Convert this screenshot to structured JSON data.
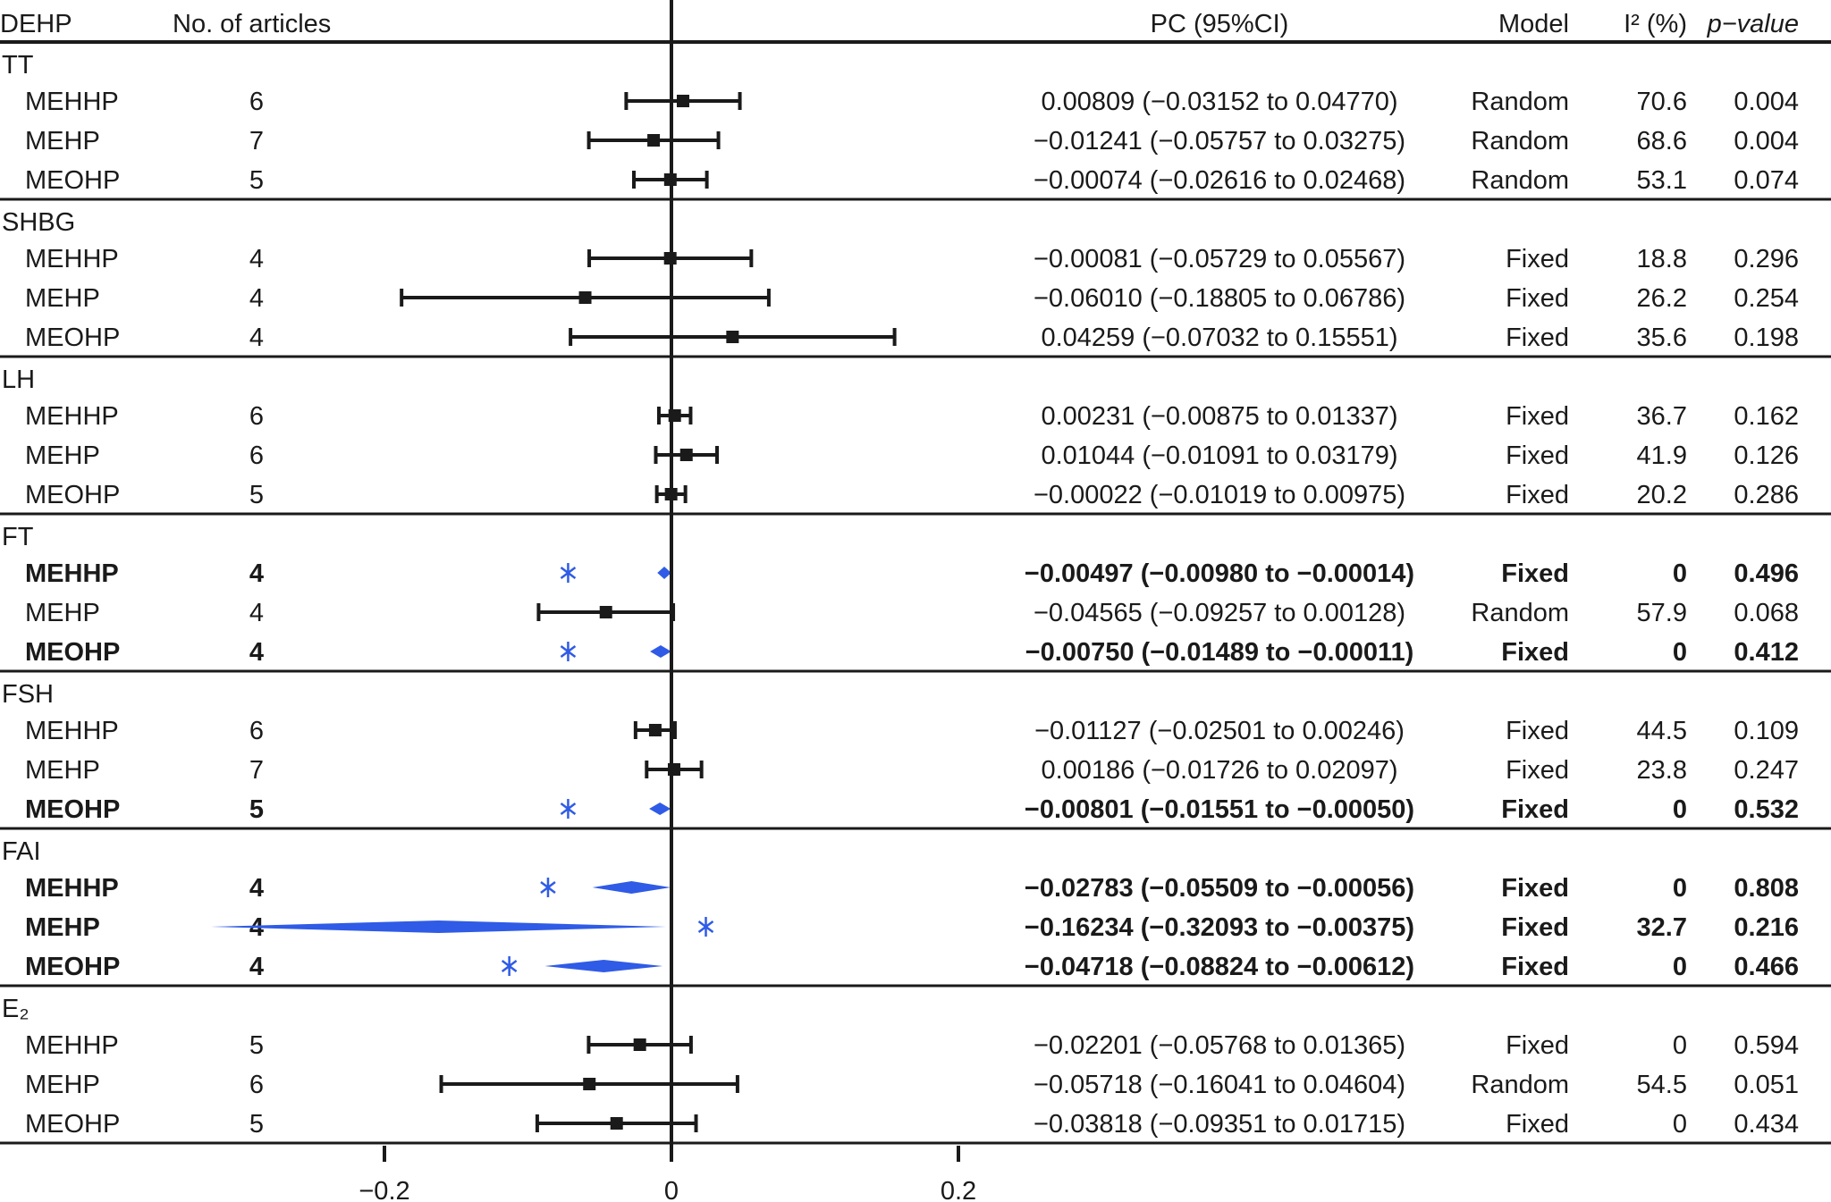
{
  "chart_data": {
    "type": "forest",
    "headers": {
      "col1": "DEHP",
      "col2": "No. of articles",
      "ci": "PC (95%CI)",
      "model": "Model",
      "i2": "I² (%)",
      "p": "p−value"
    },
    "x_axis": {
      "ticks": [
        -0.2,
        0,
        0.2
      ],
      "tick_labels": [
        "−0.2",
        "0",
        "0.2"
      ],
      "reference_line": 0,
      "range": [
        -0.33,
        0.25
      ]
    },
    "colors": {
      "estimate": "#1a1a1a",
      "significant": "#2f5be6",
      "rule": "#1a1a1a"
    },
    "groups": [
      {
        "label": "TT",
        "rows": [
          {
            "name": "MEHHP",
            "n": "6",
            "pc": 0.00809,
            "lo": -0.03152,
            "hi": 0.0477,
            "ci_text": "0.00809 (−0.03152 to 0.04770)",
            "model": "Random",
            "i2": "70.6",
            "p": "0.004",
            "significant": false
          },
          {
            "name": "MEHP",
            "n": "7",
            "pc": -0.01241,
            "lo": -0.05757,
            "hi": 0.03275,
            "ci_text": "−0.01241 (−0.05757 to 0.03275)",
            "model": "Random",
            "i2": "68.6",
            "p": "0.004",
            "significant": false
          },
          {
            "name": "MEOHP",
            "n": "5",
            "pc": -0.00074,
            "lo": -0.02616,
            "hi": 0.02468,
            "ci_text": "−0.00074 (−0.02616 to 0.02468)",
            "model": "Random",
            "i2": "53.1",
            "p": "0.074",
            "significant": false
          }
        ]
      },
      {
        "label": "SHBG",
        "rows": [
          {
            "name": "MEHHP",
            "n": "4",
            "pc": -0.00081,
            "lo": -0.05729,
            "hi": 0.05567,
            "ci_text": "−0.00081 (−0.05729 to 0.05567)",
            "model": "Fixed",
            "i2": "18.8",
            "p": "0.296",
            "significant": false
          },
          {
            "name": "MEHP",
            "n": "4",
            "pc": -0.0601,
            "lo": -0.18805,
            "hi": 0.06786,
            "ci_text": "−0.06010 (−0.18805 to 0.06786)",
            "model": "Fixed",
            "i2": "26.2",
            "p": "0.254",
            "significant": false
          },
          {
            "name": "MEOHP",
            "n": "4",
            "pc": 0.04259,
            "lo": -0.07032,
            "hi": 0.15551,
            "ci_text": "0.04259 (−0.07032 to 0.15551)",
            "model": "Fixed",
            "i2": "35.6",
            "p": "0.198",
            "significant": false
          }
        ]
      },
      {
        "label": "LH",
        "rows": [
          {
            "name": "MEHHP",
            "n": "6",
            "pc": 0.00231,
            "lo": -0.00875,
            "hi": 0.01337,
            "ci_text": "0.00231 (−0.00875 to 0.01337)",
            "model": "Fixed",
            "i2": "36.7",
            "p": "0.162",
            "significant": false
          },
          {
            "name": "MEHP",
            "n": "6",
            "pc": 0.01044,
            "lo": -0.01091,
            "hi": 0.03179,
            "ci_text": "0.01044 (−0.01091 to 0.03179)",
            "model": "Fixed",
            "i2": "41.9",
            "p": "0.126",
            "significant": false
          },
          {
            "name": "MEOHP",
            "n": "5",
            "pc": -0.00022,
            "lo": -0.01019,
            "hi": 0.00975,
            "ci_text": "−0.00022 (−0.01019 to 0.00975)",
            "model": "Fixed",
            "i2": "20.2",
            "p": "0.286",
            "significant": false
          }
        ]
      },
      {
        "label": "FT",
        "rows": [
          {
            "name": "MEHHP",
            "n": "4",
            "pc": -0.00497,
            "lo": -0.0098,
            "hi": -0.00014,
            "ci_text": "−0.00497 (−0.00980 to −0.00014)",
            "model": "Fixed",
            "i2": "0",
            "p": "0.496",
            "significant": true,
            "star_x": -0.072
          },
          {
            "name": "MEHP",
            "n": "4",
            "pc": -0.04565,
            "lo": -0.09257,
            "hi": 0.00128,
            "ci_text": "−0.04565 (−0.09257 to 0.00128)",
            "model": "Random",
            "i2": "57.9",
            "p": "0.068",
            "significant": false
          },
          {
            "name": "MEOHP",
            "n": "4",
            "pc": -0.0075,
            "lo": -0.01489,
            "hi": -0.00011,
            "ci_text": "−0.00750 (−0.01489 to −0.00011)",
            "model": "Fixed",
            "i2": "0",
            "p": "0.412",
            "significant": true,
            "star_x": -0.072
          }
        ]
      },
      {
        "label": "FSH",
        "rows": [
          {
            "name": "MEHHP",
            "n": "6",
            "pc": -0.01127,
            "lo": -0.02501,
            "hi": 0.00246,
            "ci_text": "−0.01127 (−0.02501 to 0.00246)",
            "model": "Fixed",
            "i2": "44.5",
            "p": "0.109",
            "significant": false
          },
          {
            "name": "MEHP",
            "n": "7",
            "pc": 0.00186,
            "lo": -0.01726,
            "hi": 0.02097,
            "ci_text": "0.00186 (−0.01726 to 0.02097)",
            "model": "Fixed",
            "i2": "23.8",
            "p": "0.247",
            "significant": false
          },
          {
            "name": "MEOHP",
            "n": "5",
            "pc": -0.00801,
            "lo": -0.01551,
            "hi": -0.0005,
            "ci_text": "−0.00801 (−0.01551 to −0.00050)",
            "model": "Fixed",
            "i2": "0",
            "p": "0.532",
            "significant": true,
            "star_x": -0.072
          }
        ]
      },
      {
        "label": "FAI",
        "rows": [
          {
            "name": "MEHHP",
            "n": "4",
            "pc": -0.02783,
            "lo": -0.05509,
            "hi": -0.00056,
            "ci_text": "−0.02783 (−0.05509 to −0.00056)",
            "model": "Fixed",
            "i2": "0",
            "p": "0.808",
            "significant": true,
            "star_x": -0.086
          },
          {
            "name": "MEHP",
            "n": "4",
            "pc": -0.16234,
            "lo": -0.32093,
            "hi": -0.00375,
            "ci_text": "−0.16234 (−0.32093 to −0.00375)",
            "model": "Fixed",
            "i2": "32.7",
            "p": "0.216",
            "significant": true,
            "star_x": 0.024
          },
          {
            "name": "MEOHP",
            "n": "4",
            "pc": -0.04718,
            "lo": -0.08824,
            "hi": -0.00612,
            "ci_text": "−0.04718 (−0.08824 to −0.00612)",
            "model": "Fixed",
            "i2": "0",
            "p": "0.466",
            "significant": true,
            "star_x": -0.113
          }
        ]
      },
      {
        "label": "E₂",
        "rows": [
          {
            "name": "MEHHP",
            "n": "5",
            "pc": -0.02201,
            "lo": -0.05768,
            "hi": 0.01365,
            "ci_text": "−0.02201 (−0.05768 to 0.01365)",
            "model": "Fixed",
            "i2": "0",
            "p": "0.594",
            "significant": false
          },
          {
            "name": "MEHP",
            "n": "6",
            "pc": -0.05718,
            "lo": -0.16041,
            "hi": 0.04604,
            "ci_text": "−0.05718 (−0.16041 to 0.04604)",
            "model": "Random",
            "i2": "54.5",
            "p": "0.051",
            "significant": false
          },
          {
            "name": "MEOHP",
            "n": "5",
            "pc": -0.03818,
            "lo": -0.09351,
            "hi": 0.01715,
            "ci_text": "−0.03818 (−0.09351 to 0.01715)",
            "model": "Fixed",
            "i2": "0",
            "p": "0.434",
            "significant": false
          }
        ]
      }
    ]
  }
}
